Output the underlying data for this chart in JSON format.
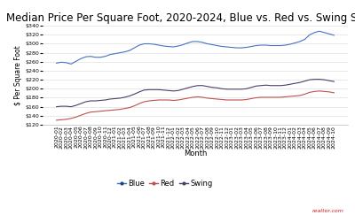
{
  "title": "Median Price Per Square Foot, 2020-2024, Blue vs. Red vs. Swing States",
  "ylabel": "$ Per Square Foot",
  "xlabel": "Month",
  "legend_labels": [
    "Blue",
    "Red",
    "Swing"
  ],
  "line_colors": [
    "#4472c4",
    "#c0504d",
    "#4b3f6b"
  ],
  "legend_dot_colors": [
    "#1f3f8f",
    "#c0504d",
    "#4b3f6b"
  ],
  "ylim": [
    120,
    340
  ],
  "yticks": [
    120,
    140,
    160,
    180,
    200,
    220,
    240,
    260,
    280,
    300,
    320,
    340
  ],
  "months": [
    "2020-01",
    "2020-02",
    "2020-03",
    "2020-04",
    "2020-05",
    "2020-06",
    "2020-07",
    "2020-08",
    "2020-09",
    "2020-10",
    "2020-11",
    "2020-12",
    "2021-01",
    "2021-02",
    "2021-03",
    "2021-04",
    "2021-05",
    "2021-06",
    "2021-07",
    "2021-08",
    "2021-09",
    "2021-10",
    "2021-11",
    "2021-12",
    "2022-01",
    "2022-02",
    "2022-03",
    "2022-04",
    "2022-05",
    "2022-06",
    "2022-07",
    "2022-08",
    "2022-09",
    "2022-10",
    "2022-11",
    "2022-12",
    "2023-01",
    "2023-02",
    "2023-03",
    "2023-04",
    "2023-05",
    "2023-06",
    "2023-07",
    "2023-08",
    "2023-09",
    "2023-10",
    "2023-11",
    "2023-12",
    "2024-01",
    "2024-02",
    "2024-03",
    "2024-04",
    "2024-05",
    "2024-06",
    "2024-07",
    "2024-08",
    "2024-09",
    "2024-10"
  ],
  "blue": [
    257,
    259,
    258,
    255,
    261,
    267,
    271,
    272,
    270,
    270,
    272,
    276,
    278,
    280,
    282,
    285,
    291,
    297,
    300,
    300,
    299,
    297,
    295,
    294,
    293,
    295,
    298,
    302,
    305,
    305,
    303,
    300,
    298,
    296,
    294,
    293,
    292,
    291,
    291,
    292,
    294,
    296,
    297,
    297,
    296,
    296,
    296,
    297,
    299,
    302,
    305,
    310,
    320,
    325,
    328,
    325,
    322,
    319
  ],
  "red": [
    130,
    131,
    132,
    134,
    137,
    141,
    145,
    148,
    149,
    150,
    151,
    152,
    153,
    154,
    156,
    158,
    162,
    167,
    171,
    173,
    174,
    175,
    175,
    175,
    174,
    175,
    177,
    179,
    181,
    182,
    181,
    179,
    178,
    177,
    176,
    175,
    175,
    175,
    175,
    176,
    178,
    180,
    181,
    181,
    181,
    181,
    181,
    182,
    183,
    184,
    185,
    188,
    192,
    194,
    195,
    194,
    193,
    191
  ],
  "swing": [
    160,
    161,
    161,
    160,
    163,
    167,
    171,
    173,
    173,
    174,
    175,
    177,
    178,
    179,
    181,
    184,
    188,
    193,
    197,
    198,
    198,
    198,
    197,
    196,
    195,
    196,
    199,
    202,
    205,
    207,
    207,
    205,
    203,
    202,
    200,
    199,
    199,
    199,
    199,
    200,
    203,
    206,
    207,
    208,
    207,
    207,
    207,
    208,
    210,
    212,
    214,
    217,
    220,
    221,
    221,
    220,
    218,
    216
  ],
  "background_color": "#ffffff",
  "grid_color": "#e0e0e0",
  "title_fontsize": 8.5,
  "tick_fontsize": 4.5,
  "ylabel_fontsize": 5.5,
  "xlabel_fontsize": 6,
  "legend_fontsize": 6,
  "watermark": "realtor.com"
}
